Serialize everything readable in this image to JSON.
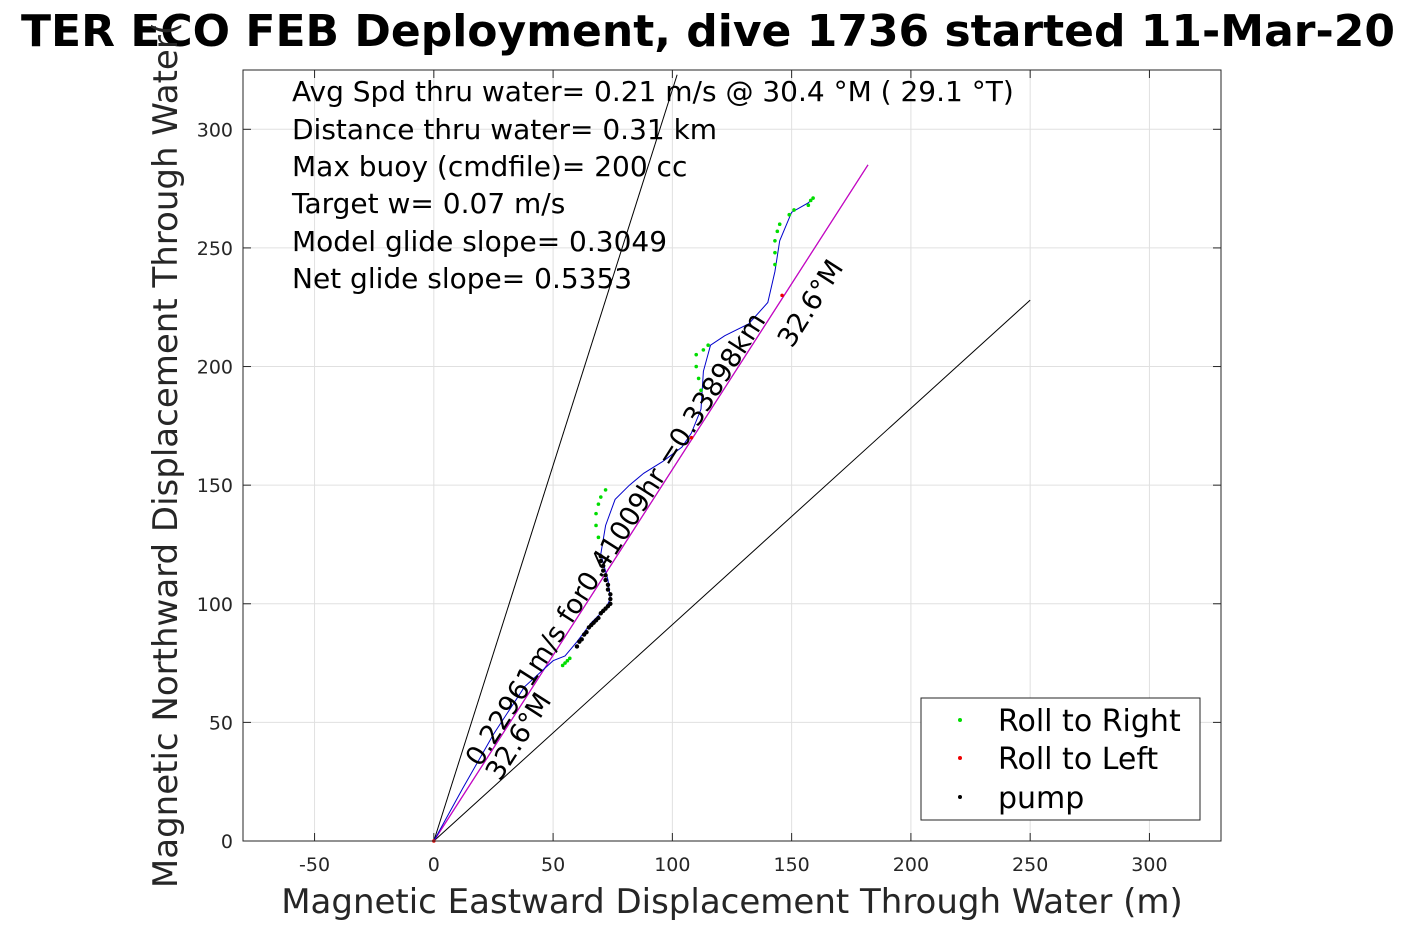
{
  "chart_data": {
    "type": "line",
    "title": "TER ECO FEB Deployment, dive 1736 started 11-Mar-20",
    "xlabel": "Magnetic Eastward Displacement Through Water (m)",
    "ylabel": "Magnetic Northward Displacement Through Water(",
    "xlim": [
      -80,
      330
    ],
    "ylim": [
      0,
      325
    ],
    "xticks": [
      -50,
      0,
      50,
      100,
      150,
      200,
      250,
      300
    ],
    "yticks": [
      0,
      50,
      100,
      150,
      200,
      250,
      300
    ],
    "xtick_labels": [
      "-50",
      "0",
      "50",
      "100",
      "150",
      "200",
      "250",
      "300"
    ],
    "ytick_labels": [
      "0",
      "50",
      "100",
      "150",
      "200",
      "250",
      "300"
    ],
    "grid": true,
    "legend_position": "bottom-right",
    "stats": [
      "Avg Spd thru water=  0.21 m/s @  30.4 °M ( 29.1 °T)",
      "Distance thru water=  0.31 km",
      "Max buoy (cmdfile)= 200 cc",
      "Target w= 0.07 m/s",
      "Model glide slope= 0.3049",
      "Net glide slope= 0.5353"
    ],
    "annotations": [
      {
        "text": "0.22961m/s for0.41009hr =0.33898km",
        "x": 20,
        "y": 30,
        "angle_deg": 57.4
      },
      {
        "text": "32.6°M",
        "x": 24,
        "y": 24,
        "angle_deg": 57.4
      },
      {
        "text": "32.6°M",
        "x": 153,
        "y": 207,
        "angle_deg": 57.4
      }
    ],
    "reference_lines": [
      {
        "x": [
          0,
          102
        ],
        "y": [
          0,
          323
        ],
        "color": "#000000"
      },
      {
        "x": [
          0,
          250
        ],
        "y": [
          0,
          228
        ],
        "color": "#000000"
      },
      {
        "x": [
          0,
          182
        ],
        "y": [
          0,
          285
        ],
        "color": "#000000"
      }
    ],
    "track": {
      "color": "#0000cc",
      "x": [
        0,
        12,
        25,
        38,
        50,
        55,
        60,
        66,
        72,
        74,
        73,
        70,
        72,
        76,
        82,
        88,
        96,
        104,
        108,
        112,
        113,
        116,
        122,
        132,
        140,
        143,
        145,
        150,
        157,
        159
      ],
      "y": [
        0,
        22,
        45,
        65,
        76,
        78,
        84,
        92,
        98,
        102,
        110,
        121,
        133,
        144,
        150,
        155,
        160,
        166,
        172,
        182,
        198,
        209,
        213,
        218,
        227,
        240,
        253,
        265,
        269,
        271
      ]
    },
    "glide_path": {
      "color": "#cc00cc",
      "x": [
        0,
        182
      ],
      "y": [
        0,
        285
      ]
    },
    "series": [
      {
        "name": "Roll to Right",
        "color": "#00dd00",
        "x": [
          54,
          55,
          56,
          57,
          69,
          68,
          68,
          69,
          70,
          72,
          112,
          111,
          110,
          110,
          113,
          115,
          143,
          143,
          143,
          144,
          145,
          149,
          151,
          157,
          158,
          159
        ],
        "y": [
          74,
          75,
          76,
          77,
          128,
          133,
          138,
          142,
          145,
          148,
          190,
          195,
          200,
          205,
          207,
          209,
          243,
          248,
          253,
          257,
          260,
          264,
          266,
          268,
          270,
          271
        ]
      },
      {
        "name": "Roll to Left",
        "color": "#ee0000",
        "x": [
          0,
          108,
          146
        ],
        "y": [
          0,
          170,
          230
        ]
      },
      {
        "name": "pump",
        "color": "#000000",
        "x": [
          60,
          61,
          62,
          63,
          64,
          65,
          66,
          67,
          68,
          69,
          70,
          71,
          72,
          73,
          74,
          74,
          74,
          73,
          73,
          72,
          72,
          71,
          71,
          70,
          70
        ],
        "y": [
          82,
          84,
          85,
          87,
          88,
          90,
          91,
          92,
          93,
          94,
          96,
          97,
          98,
          99,
          100,
          102,
          104,
          106,
          108,
          110,
          112,
          114,
          116,
          118,
          120
        ]
      }
    ]
  }
}
